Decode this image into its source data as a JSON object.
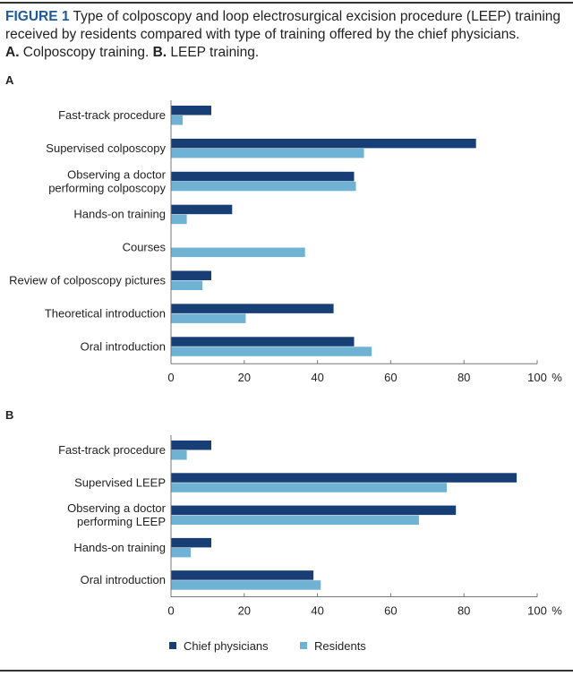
{
  "caption": {
    "figure_label": "FIGURE 1",
    "text": " Type of colposcopy and loop electrosurgical excision procedure (LEEP) training received by residents compared with type of training offered by the chief physicians.",
    "a_label": "A.",
    "a_text": " Colposcopy training. ",
    "b_label": "B.",
    "b_text": " LEEP training."
  },
  "colors": {
    "chief": "#173f76",
    "residents": "#6fb2d3",
    "caption_accent": "#1e5aa0"
  },
  "chart_data": [
    {
      "type": "bar",
      "orientation": "horizontal",
      "panel": "A",
      "categories": [
        "Fast-track procedure",
        "Supervised colposcopy",
        "Observing a doctor\nperforming colposcopy",
        "Hands-on training",
        "Courses",
        "Review of colposcopy pictures",
        "Theoretical introduction",
        "Oral introduction"
      ],
      "series": [
        {
          "name": "Chief physicians",
          "values": [
            11.0,
            83.3,
            50.0,
            16.7,
            0,
            11.0,
            44.4,
            50.0
          ]
        },
        {
          "name": "Residents",
          "values": [
            3.2,
            52.7,
            50.5,
            4.3,
            36.6,
            8.6,
            20.4,
            54.8
          ]
        }
      ],
      "xlim": [
        0,
        100
      ],
      "xticks": [
        "0",
        "20",
        "40",
        "60",
        "80",
        "100"
      ],
      "xunit": "%",
      "grid": false
    },
    {
      "type": "bar",
      "orientation": "horizontal",
      "panel": "B",
      "categories": [
        "Fast-track procedure",
        "Supervised LEEP",
        "Observing a doctor\nperforming LEEP",
        "Hands-on training",
        "Oral introduction"
      ],
      "series": [
        {
          "name": "Chief physicians",
          "values": [
            11.0,
            94.4,
            77.8,
            11.0,
            38.9
          ]
        },
        {
          "name": "Residents",
          "values": [
            4.3,
            75.3,
            67.7,
            5.4,
            40.9
          ]
        }
      ],
      "xlim": [
        0,
        100
      ],
      "xticks": [
        "0",
        "20",
        "40",
        "60",
        "80",
        "100"
      ],
      "xunit": "%",
      "grid": false
    }
  ],
  "legend": {
    "position": "bottom",
    "items": [
      "Chief physicians",
      "Residents"
    ]
  }
}
